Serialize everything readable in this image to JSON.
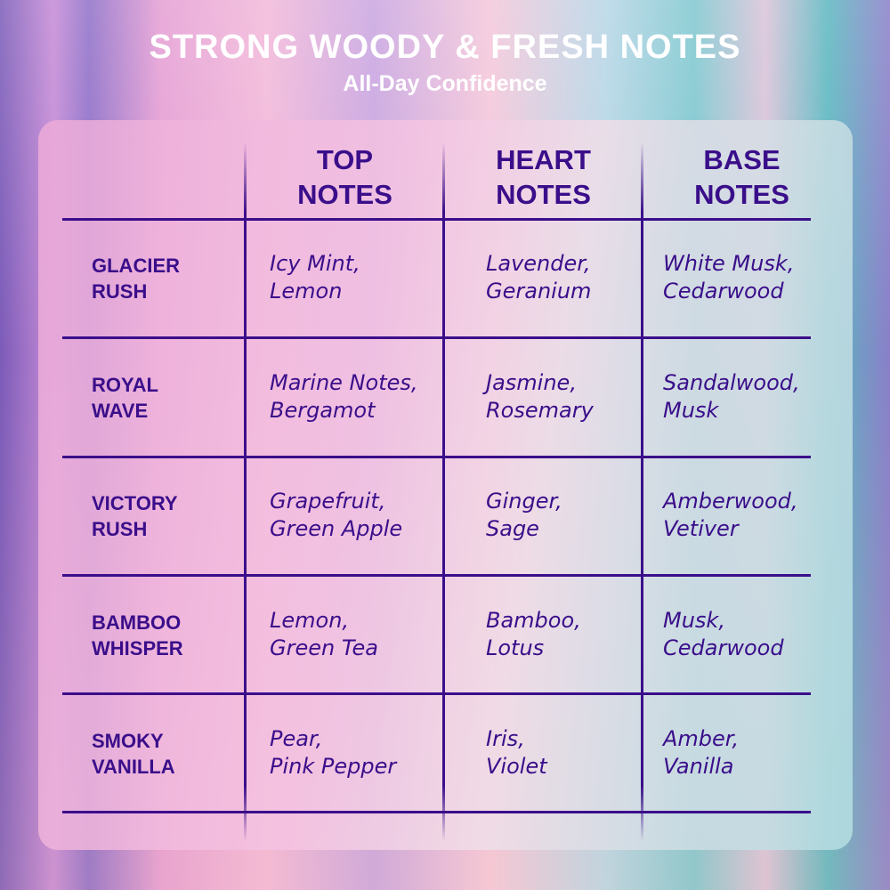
{
  "title": "STRONG WOODY & FRESH NOTES",
  "subtitle": "All-Day Confidence",
  "colors": {
    "text": "#3a0e8a",
    "title": "#ffffff"
  },
  "headers": [
    [
      "TOP",
      "NOTES"
    ],
    [
      "HEART",
      "NOTES"
    ],
    [
      "BASE",
      "NOTES"
    ]
  ],
  "rows": [
    {
      "name": [
        "GLACIER",
        "RUSH"
      ],
      "top": [
        "Icy Mint,",
        "Lemon"
      ],
      "heart": [
        "Lavender,",
        "Geranium"
      ],
      "base": [
        "White Musk,",
        "Cedarwood"
      ]
    },
    {
      "name": [
        "ROYAL",
        "WAVE"
      ],
      "top": [
        "Marine Notes,",
        "Bergamot"
      ],
      "heart": [
        "Jasmine,",
        "Rosemary"
      ],
      "base": [
        "Sandalwood,",
        "Musk"
      ]
    },
    {
      "name": [
        "VICTORY",
        "RUSH"
      ],
      "top": [
        "Grapefruit,",
        "Green Apple"
      ],
      "heart": [
        "Ginger,",
        "Sage"
      ],
      "base": [
        "Amberwood,",
        "Vetiver"
      ]
    },
    {
      "name": [
        "BAMBOO",
        "WHISPER"
      ],
      "top": [
        "Lemon,",
        "Green Tea"
      ],
      "heart": [
        "Bamboo,",
        "Lotus"
      ],
      "base": [
        "Musk,",
        "Cedarwood"
      ]
    },
    {
      "name": [
        "SMOKY",
        "VANILLA"
      ],
      "top": [
        "Pear,",
        "Pink Pepper"
      ],
      "heart": [
        "Iris,",
        "Violet"
      ],
      "base": [
        "Amber,",
        "Vanilla"
      ]
    }
  ]
}
